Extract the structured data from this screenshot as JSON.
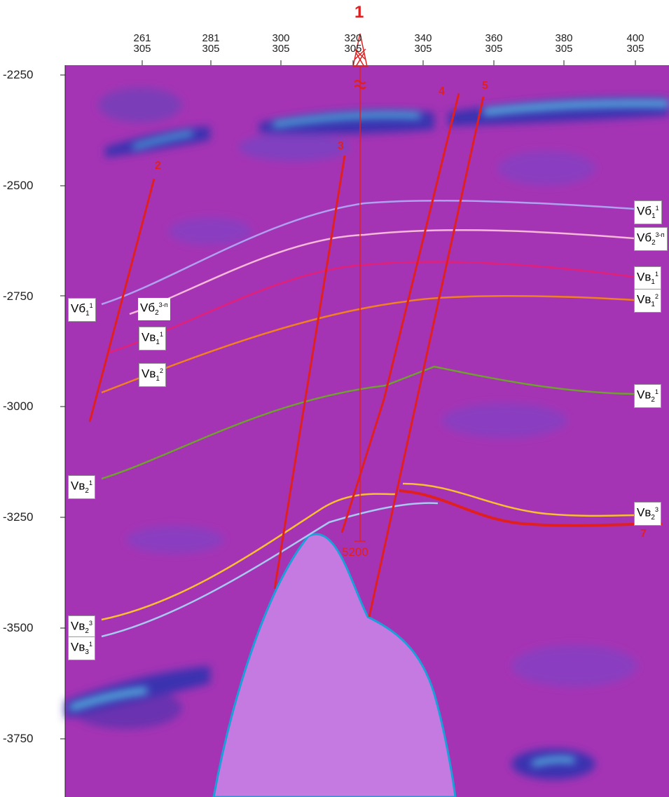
{
  "well": {
    "number": "1",
    "depth": "5200"
  },
  "x_axis": [
    {
      "top": "261",
      "bottom": "305"
    },
    {
      "top": "281",
      "bottom": "305"
    },
    {
      "top": "300",
      "bottom": "305"
    },
    {
      "top": "320",
      "bottom": "305"
    },
    {
      "top": "340",
      "bottom": "305"
    },
    {
      "top": "360",
      "bottom": "305"
    },
    {
      "top": "380",
      "bottom": "305"
    },
    {
      "top": "400",
      "bottom": "305"
    }
  ],
  "y_axis": [
    "-2250",
    "-2500",
    "-2750",
    "-3000",
    "-3250",
    "-3500",
    "-3750"
  ],
  "faults": [
    "2",
    "3",
    "4",
    "5",
    "7"
  ],
  "horizon_labels": {
    "left": [
      {
        "base": "Vб",
        "sub": "1",
        "sup": "1"
      },
      {
        "base": "Vб",
        "sub": "2",
        "sup": "3-п"
      },
      {
        "base": "Vв",
        "sub": "1",
        "sup": "1"
      },
      {
        "base": "Vв",
        "sub": "1",
        "sup": "2"
      },
      {
        "base": "Vв",
        "sub": "2",
        "sup": "1"
      },
      {
        "base": "Vв",
        "sub": "2",
        "sup": "3"
      },
      {
        "base": "Vв",
        "sub": "3",
        "sup": "1"
      }
    ],
    "right": [
      {
        "base": "Vб",
        "sub": "1",
        "sup": "1"
      },
      {
        "base": "Vб",
        "sub": "2",
        "sup": "3-п"
      },
      {
        "base": "Vв",
        "sub": "1",
        "sup": "1"
      },
      {
        "base": "Vв",
        "sub": "1",
        "sup": "2"
      },
      {
        "base": "Vв",
        "sub": "2",
        "sup": "1"
      },
      {
        "base": "Vв",
        "sub": "2",
        "sup": "3"
      }
    ]
  }
}
